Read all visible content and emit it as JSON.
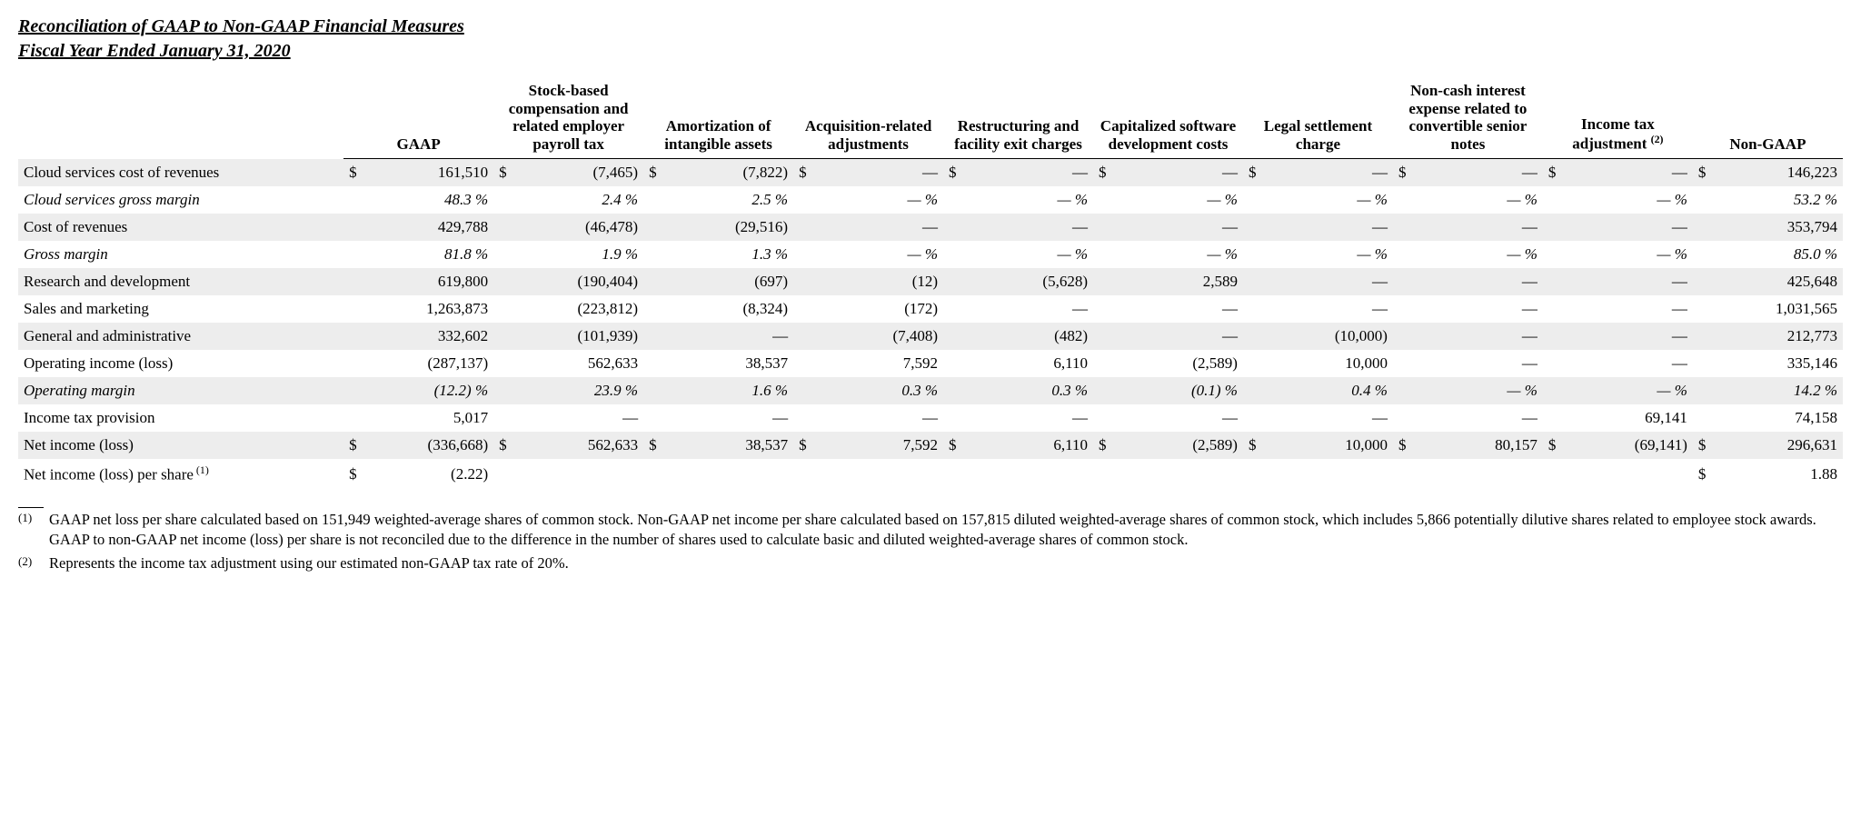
{
  "title_line1": "Reconciliation of GAAP to Non-GAAP Financial Measures",
  "title_line2": "Fiscal Year Ended January 31, 2020",
  "columns": [
    "GAAP",
    "Stock-based compensation and related employer payroll tax",
    "Amortization of intangible assets",
    "Acquisition-related adjustments",
    "Restructuring and facility exit charges",
    "Capitalized software development costs",
    "Legal settlement charge",
    "Non-cash interest expense related to convertible senior notes",
    "Income tax adjustment",
    "Non-GAAP"
  ],
  "income_tax_sup": "(2)",
  "rows": [
    {
      "label": "Cloud services cost of revenues",
      "shade": true,
      "italic": false,
      "showDollar": true,
      "cells": [
        {
          "v": "161,510"
        },
        {
          "v": "(7,465)"
        },
        {
          "v": "(7,822)"
        },
        {
          "v": "—"
        },
        {
          "v": "—"
        },
        {
          "v": "—"
        },
        {
          "v": "—"
        },
        {
          "v": "—"
        },
        {
          "v": "—"
        },
        {
          "v": "146,223"
        }
      ]
    },
    {
      "label": "Cloud services gross margin",
      "shade": false,
      "italic": true,
      "pct": true,
      "cells": [
        {
          "v": "48.3"
        },
        {
          "v": "2.4"
        },
        {
          "v": "2.5"
        },
        {
          "v": "—"
        },
        {
          "v": "—"
        },
        {
          "v": "—"
        },
        {
          "v": "—"
        },
        {
          "v": "—"
        },
        {
          "v": "—"
        },
        {
          "v": "53.2"
        }
      ]
    },
    {
      "label": "Cost of revenues",
      "shade": true,
      "cells": [
        {
          "v": "429,788"
        },
        {
          "v": "(46,478)"
        },
        {
          "v": "(29,516)"
        },
        {
          "v": "—"
        },
        {
          "v": "—"
        },
        {
          "v": "—"
        },
        {
          "v": "—"
        },
        {
          "v": "—"
        },
        {
          "v": "—"
        },
        {
          "v": "353,794"
        }
      ]
    },
    {
      "label": "Gross margin",
      "italic": true,
      "pct": true,
      "cells": [
        {
          "v": "81.8"
        },
        {
          "v": "1.9"
        },
        {
          "v": "1.3"
        },
        {
          "v": "—"
        },
        {
          "v": "—"
        },
        {
          "v": "—"
        },
        {
          "v": "—"
        },
        {
          "v": "—"
        },
        {
          "v": "—"
        },
        {
          "v": "85.0"
        }
      ]
    },
    {
      "label": "Research and development",
      "shade": true,
      "cells": [
        {
          "v": "619,800"
        },
        {
          "v": "(190,404)"
        },
        {
          "v": "(697)"
        },
        {
          "v": "(12)"
        },
        {
          "v": "(5,628)"
        },
        {
          "v": "2,589"
        },
        {
          "v": "—"
        },
        {
          "v": "—"
        },
        {
          "v": "—"
        },
        {
          "v": "425,648"
        }
      ]
    },
    {
      "label": "Sales and marketing",
      "cells": [
        {
          "v": "1,263,873"
        },
        {
          "v": "(223,812)"
        },
        {
          "v": "(8,324)"
        },
        {
          "v": "(172)"
        },
        {
          "v": "—"
        },
        {
          "v": "—"
        },
        {
          "v": "—"
        },
        {
          "v": "—"
        },
        {
          "v": "—"
        },
        {
          "v": "1,031,565"
        }
      ]
    },
    {
      "label": "General and administrative",
      "shade": true,
      "cells": [
        {
          "v": "332,602"
        },
        {
          "v": "(101,939)"
        },
        {
          "v": "—"
        },
        {
          "v": "(7,408)"
        },
        {
          "v": "(482)"
        },
        {
          "v": "—"
        },
        {
          "v": "(10,000)"
        },
        {
          "v": "—"
        },
        {
          "v": "—"
        },
        {
          "v": "212,773"
        }
      ]
    },
    {
      "label": "Operating income (loss)",
      "cells": [
        {
          "v": "(287,137)"
        },
        {
          "v": "562,633"
        },
        {
          "v": "38,537"
        },
        {
          "v": "7,592"
        },
        {
          "v": "6,110"
        },
        {
          "v": "(2,589)"
        },
        {
          "v": "10,000"
        },
        {
          "v": "—"
        },
        {
          "v": "—"
        },
        {
          "v": "335,146"
        }
      ]
    },
    {
      "label": "Operating margin",
      "shade": true,
      "italic": true,
      "pct": true,
      "cells": [
        {
          "v": "(12.2)"
        },
        {
          "v": "23.9"
        },
        {
          "v": "1.6"
        },
        {
          "v": "0.3"
        },
        {
          "v": "0.3"
        },
        {
          "v": "(0.1)"
        },
        {
          "v": "0.4"
        },
        {
          "v": "—"
        },
        {
          "v": "—"
        },
        {
          "v": "14.2"
        }
      ]
    },
    {
      "label": "Income tax provision",
      "cells": [
        {
          "v": "5,017"
        },
        {
          "v": "—"
        },
        {
          "v": "—"
        },
        {
          "v": "—"
        },
        {
          "v": "—"
        },
        {
          "v": "—"
        },
        {
          "v": "—"
        },
        {
          "v": "—"
        },
        {
          "v": "69,141"
        },
        {
          "v": "74,158"
        }
      ]
    },
    {
      "label": "Net income (loss)",
      "shade": true,
      "showDollar": true,
      "cells": [
        {
          "v": "(336,668)"
        },
        {
          "v": "562,633"
        },
        {
          "v": "38,537"
        },
        {
          "v": "7,592"
        },
        {
          "v": "6,110"
        },
        {
          "v": "(2,589)"
        },
        {
          "v": "10,000"
        },
        {
          "v": "80,157"
        },
        {
          "v": "(69,141)"
        },
        {
          "v": "296,631"
        }
      ]
    },
    {
      "label": "Net income (loss) per share",
      "labelSup": "(1)",
      "showDollar": true,
      "cells": [
        {
          "v": "(2.22)"
        },
        {
          "v": ""
        },
        {
          "v": ""
        },
        {
          "v": ""
        },
        {
          "v": ""
        },
        {
          "v": ""
        },
        {
          "v": ""
        },
        {
          "v": ""
        },
        {
          "v": ""
        },
        {
          "v": "1.88"
        }
      ]
    }
  ],
  "footnotes": [
    {
      "mark": "(1)",
      "text": "GAAP net loss per share calculated based on 151,949 weighted-average shares of common stock. Non-GAAP net income per share calculated based on 157,815 diluted weighted-average shares of common stock, which includes 5,866 potentially dilutive shares related to employee stock awards. GAAP to non-GAAP net income (loss) per share is not reconciled due to the difference in the number of shares used to calculate basic and diluted weighted-average shares of common stock."
    },
    {
      "mark": "(2)",
      "text": "Represents the income tax adjustment using our estimated non-GAAP tax rate of 20%."
    }
  ]
}
